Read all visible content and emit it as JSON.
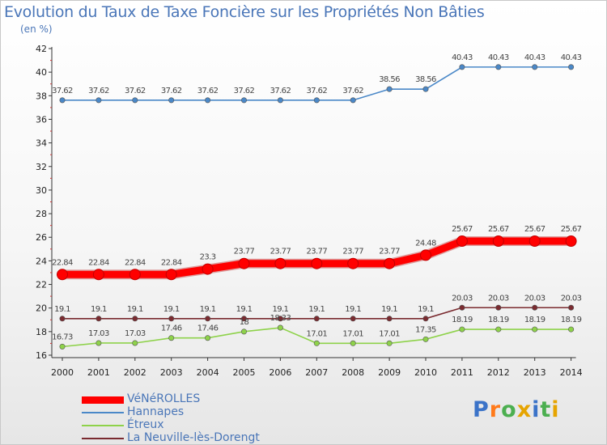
{
  "chart_data": {
    "type": "line",
    "title": "Evolution du Taux de Taxe Foncière sur les Propriétés Non Bâties",
    "subtitle": "(en %)",
    "xlabel": "",
    "ylabel": "",
    "ylim": [
      16,
      42
    ],
    "yticks": [
      16,
      18,
      20,
      22,
      24,
      26,
      28,
      30,
      32,
      34,
      36,
      38,
      40,
      42
    ],
    "categories": [
      "2000",
      "2001",
      "2002",
      "2003",
      "2004",
      "2005",
      "2006",
      "2007",
      "2008",
      "2009",
      "2010",
      "2011",
      "2012",
      "2013",
      "2014"
    ],
    "series": [
      {
        "name": "VéNéROLLES",
        "color": "#ff0000",
        "emphasis": true,
        "values": [
          22.84,
          22.84,
          22.84,
          22.84,
          23.3,
          23.77,
          23.77,
          23.77,
          23.77,
          23.77,
          24.48,
          25.67,
          25.67,
          25.67,
          25.67
        ],
        "labels": [
          "22.84",
          "22.84",
          "22.84",
          "22.84",
          "23.3",
          "23.77",
          "23.77",
          "23.77",
          "23.77",
          "23.77",
          "24.48",
          "25.67",
          "25.67",
          "25.67",
          "25.67"
        ]
      },
      {
        "name": "Hannapes",
        "color": "#4a88c8",
        "emphasis": false,
        "values": [
          37.62,
          37.62,
          37.62,
          37.62,
          37.62,
          37.62,
          37.62,
          37.62,
          37.62,
          38.56,
          38.56,
          40.43,
          40.43,
          40.43,
          40.43
        ],
        "labels": [
          "37.62",
          "37.62",
          "37.62",
          "37.62",
          "37.62",
          "37.62",
          "37.62",
          "37.62",
          "37.62",
          "38.56",
          "38.56",
          "40.43",
          "40.43",
          "40.43",
          "40.43"
        ]
      },
      {
        "name": "Étreux",
        "color": "#8ed24a",
        "emphasis": false,
        "values": [
          16.73,
          17.03,
          17.03,
          17.46,
          17.46,
          18,
          18.33,
          17.01,
          17.01,
          17.01,
          17.35,
          18.19,
          18.19,
          18.19,
          18.19
        ],
        "labels": [
          "16.73",
          "17.03",
          "17.03",
          "17.46",
          "17.46",
          "18",
          "18.33",
          "17.01",
          "17.01",
          "17.01",
          "17.35",
          "18.19",
          "18.19",
          "18.19",
          "18.19"
        ]
      },
      {
        "name": "La Neuville-lès-Dorengt",
        "color": "#7a2b30",
        "emphasis": false,
        "values": [
          19.1,
          19.1,
          19.1,
          19.1,
          19.1,
          19.1,
          19.1,
          19.1,
          19.1,
          19.1,
          19.1,
          20.03,
          20.03,
          20.03,
          20.03
        ],
        "labels": [
          "19.1",
          "19.1",
          "19.1",
          "19.1",
          "19.1",
          "19.1",
          "19.1",
          "19.1",
          "19.1",
          "19.1",
          "19.1",
          "20.03",
          "20.03",
          "20.03",
          "20.03"
        ]
      }
    ],
    "grid": false,
    "legend_position": "bottom-left"
  },
  "logo": {
    "letters": [
      "P",
      "r",
      "o",
      "x",
      "i",
      "t",
      "i"
    ]
  }
}
